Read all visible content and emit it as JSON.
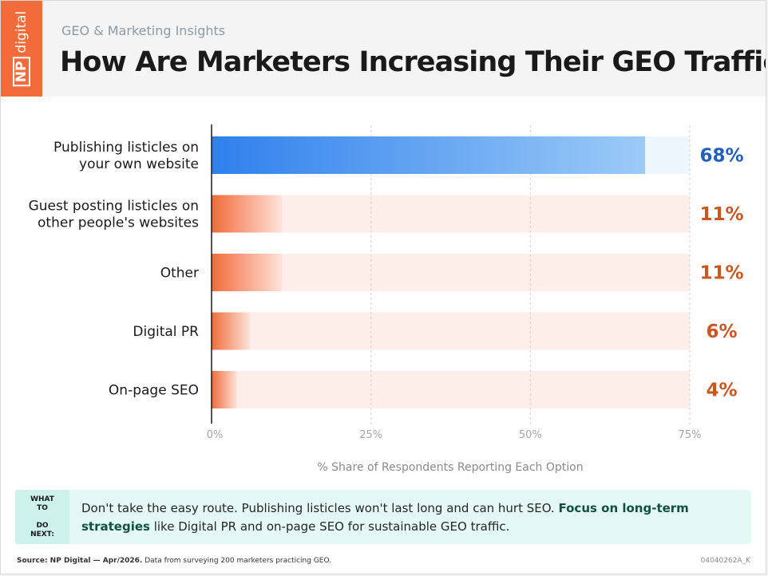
{
  "header": {
    "logo_np": "NP",
    "logo_digital": "digital",
    "subtitle": "GEO & Marketing Insights",
    "title": "How Are Marketers Increasing Their GEO Traffic"
  },
  "colors": {
    "accent_blue": "#2f80ed",
    "accent_blue_light": "#9ccbf7",
    "track_blue": "#edf5fd",
    "accent_orange": "#f26b3a",
    "accent_orange_light": "#fde3da",
    "track_orange": "#fdeee9",
    "value_blue": "#1f5fbf",
    "value_orange": "#cf5420"
  },
  "chart_data": {
    "type": "bar",
    "orientation": "horizontal",
    "categories": [
      [
        "Publishing listicles on",
        "your own website"
      ],
      [
        "Guest posting listicles on",
        "other people's websites"
      ],
      [
        "Other"
      ],
      [
        "Digital PR"
      ],
      [
        "On-page SEO"
      ]
    ],
    "values": [
      68,
      11,
      11,
      6,
      4
    ],
    "value_labels": [
      "68%",
      "11%",
      "11%",
      "6%",
      "4%"
    ],
    "highlight_index": 0,
    "xlim": [
      0,
      75
    ],
    "xticks": [
      0,
      25,
      50,
      75
    ],
    "xtick_labels": [
      "0%",
      "25%",
      "50%",
      "75%"
    ],
    "xlabel": "% Share of Respondents Reporting Each Option",
    "grid": "vertical dashed"
  },
  "next_steps": {
    "tag_line1": "WHAT TO",
    "tag_line2": "DO NEXT:",
    "text": "Don't take the easy route. Publishing listicles won't last long and can hurt SEO. ",
    "strong": "Focus on long-term strategies",
    "text_end": " like Digital PR and on-page SEO for sustainable GEO traffic."
  },
  "footer": {
    "source_label": "Source: NP Digital — Apr/2026.",
    "source_text": " Data from surveying 200 marketers practicing GEO.",
    "code": "04040262A_K"
  }
}
